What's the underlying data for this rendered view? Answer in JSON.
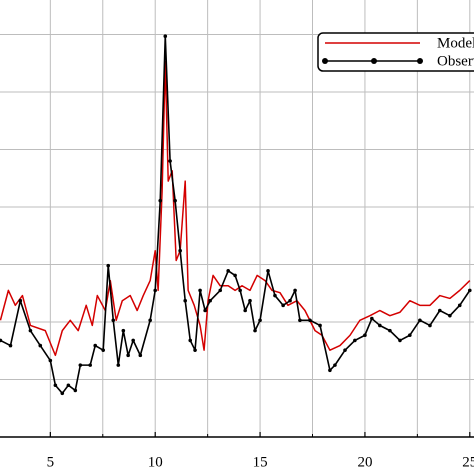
{
  "chart_data": {
    "type": "line",
    "xlim": [
      2.6,
      25.2
    ],
    "ylim": [
      0,
      7.6
    ],
    "xticks": [
      5,
      10,
      15,
      20,
      25
    ],
    "xminorticks": [
      7.5,
      12.5,
      17.5,
      22.5
    ],
    "ygrid": [
      1,
      2,
      3,
      4,
      5,
      6,
      7
    ],
    "grid": true,
    "legend": "upper right",
    "series": [
      {
        "name": "Model",
        "color": "#d40000",
        "marker": false,
        "x": [
          2.62,
          3.0,
          3.33,
          3.67,
          4.05,
          4.76,
          5.24,
          5.57,
          5.95,
          6.33,
          6.71,
          7.0,
          7.24,
          7.62,
          7.86,
          8.14,
          8.43,
          8.81,
          9.14,
          9.43,
          9.76,
          10.0,
          10.14,
          10.33,
          10.48,
          10.62,
          10.81,
          11.0,
          11.19,
          11.43,
          11.57,
          11.86,
          12.14,
          12.33,
          12.52,
          12.76,
          13.1,
          13.48,
          13.81,
          14.14,
          14.52,
          14.86,
          15.24,
          15.57,
          15.95,
          16.33,
          16.76,
          17.14,
          17.62,
          17.95,
          18.33,
          18.81,
          19.29,
          19.76,
          20.24,
          20.71,
          21.19,
          21.67,
          22.14,
          22.62,
          23.1,
          23.57,
          24.05,
          24.52,
          25.0
        ],
        "values": [
          2.03,
          2.55,
          2.29,
          2.46,
          1.94,
          1.85,
          1.42,
          1.85,
          2.03,
          1.85,
          2.29,
          1.94,
          2.46,
          2.2,
          2.72,
          2.03,
          2.37,
          2.46,
          2.2,
          2.46,
          2.72,
          3.24,
          2.55,
          4.28,
          6.53,
          4.45,
          4.63,
          3.07,
          3.24,
          4.45,
          2.55,
          2.29,
          1.94,
          1.51,
          2.37,
          2.81,
          2.63,
          2.63,
          2.55,
          2.63,
          2.55,
          2.81,
          2.72,
          2.55,
          2.51,
          2.29,
          2.37,
          2.2,
          1.85,
          1.77,
          1.51,
          1.59,
          1.77,
          2.03,
          2.11,
          2.2,
          2.11,
          2.17,
          2.37,
          2.29,
          2.29,
          2.46,
          2.41,
          2.55,
          2.72
        ]
      },
      {
        "name": "Observed",
        "color": "#000000",
        "marker": true,
        "x": [
          2.62,
          3.1,
          3.57,
          4.05,
          4.52,
          5.0,
          5.24,
          5.57,
          5.86,
          6.19,
          6.43,
          6.9,
          7.14,
          7.52,
          7.76,
          8.0,
          8.24,
          8.48,
          8.71,
          8.95,
          9.29,
          9.76,
          10.0,
          10.24,
          10.48,
          10.71,
          10.95,
          11.19,
          11.43,
          11.67,
          11.9,
          12.14,
          12.38,
          12.62,
          13.1,
          13.48,
          13.81,
          14.05,
          14.29,
          14.52,
          14.76,
          15.0,
          15.38,
          15.71,
          16.1,
          16.43,
          16.67,
          16.9,
          17.38,
          17.86,
          18.33,
          18.57,
          19.05,
          19.52,
          20.0,
          20.33,
          20.71,
          21.19,
          21.67,
          22.14,
          22.62,
          23.1,
          23.57,
          24.05,
          24.52,
          25.0
        ],
        "values": [
          1.68,
          1.59,
          2.37,
          1.85,
          1.59,
          1.33,
          0.9,
          0.76,
          0.9,
          0.81,
          1.25,
          1.25,
          1.59,
          1.51,
          2.98,
          2.03,
          1.25,
          1.85,
          1.42,
          1.68,
          1.42,
          2.03,
          2.55,
          4.11,
          6.97,
          4.8,
          4.11,
          3.24,
          2.37,
          1.68,
          1.51,
          2.55,
          2.2,
          2.37,
          2.55,
          2.89,
          2.81,
          2.55,
          2.2,
          2.37,
          1.85,
          2.03,
          2.89,
          2.46,
          2.29,
          2.37,
          2.55,
          2.03,
          2.03,
          1.94,
          1.16,
          1.25,
          1.51,
          1.68,
          1.77,
          2.06,
          1.94,
          1.85,
          1.68,
          1.77,
          2.03,
          1.94,
          2.2,
          2.11,
          2.29,
          2.55
        ]
      }
    ]
  }
}
